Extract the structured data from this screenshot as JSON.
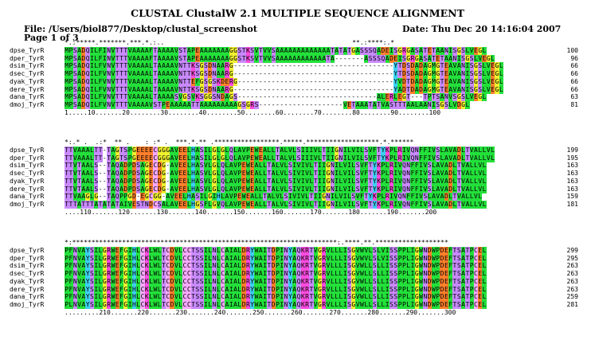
{
  "header": {
    "title": "CLUSTAL ClustalW 2.1 MULTIPLE SEQUENCE ALIGNMENT",
    "file": "File: /Users/biol877/Desktop/clustal_screenshot",
    "date": "Date: Thu Dec 20 14:16:04 2007",
    "page": "Page 1 of 3"
  },
  "blocks": [
    {
      "conservation": "*.:*****.*******.***.*.:..                                                 **.:****:.*",
      "names": [
        "dpse_TyrR",
        "dper_TyrR",
        "dsim_TyrR",
        "dsec_TyrR",
        "dyak_TyrR",
        "dere_TyrR",
        "dana_TyrR",
        "dmoj_TyrR"
      ],
      "sequences": [
        "MPSADQILFINVTTTVAAAAFTAAAAVSTAPEAAAAAAAGGSTKSVTVVSAAAAAAAAAAAAATATATGASSSQADEISGRGASATETAANISGSLVEGL",
        "MPSADQILFINVTTTVAAAAFTAAAAVSTAPEAAAAAAAGGSTKSVTVVSAAAAAAAAAAAATA-------ASSSQADEISGRGASATETAANISGSLVEGL",
        "MPSADQILFVNVTTTVAAAALTAAAAVNTTKSGSDNAARG--------------------------------------YTDSDADAGMGTEAVANISGSLVEGL",
        "MPSADQILFVNVTTTVAAAALTAAAAVNTTKSGSDNAARG--------------------------------------YTDSDADAGMGTEAVANISGSLVEGL",
        "MPSADQILFVNVTTTVAAAALTAAAAVNTTEFGSGSKDERG-------------------------------------YVDTDADAGMGTEAVANISGSLVEGL",
        "MPSADQILFVNVTTTVAAAALTAAAAVNTTKSGSDNAARG--------------------------------------YADTDADAGMGTEAVANISGSLVEGL",
        "MPSADQILFVNVTTTVAAAALTAAAASVGSVKSGGSNDAGS---------------------------------ALERLEGT---TPTSANVSGSLVEGL",
        "MPSADQILFVNVTTTVAAAAVSTPEAAAAATTAAAAAAAAAGSGRS--------------------VETAAATATVASTTTAALAANISGSLVDGL"
      ],
      "counts": [
        "100",
        "96",
        "66",
        "66",
        "66",
        "66",
        "63",
        "81"
      ],
      "ruler": "1.....10.......20........30........40........50........60........70........80........90........100"
    },
    {
      "conservation": "*:.* .  .:*  ** .    : :* .  ***.*.** .*****************.*****.*******************.*.******",
      "names": [
        "dpse_TyrR",
        "dper_TyrR",
        "dsim_TyrR",
        "dsec_TyrR",
        "dyak_TyrR",
        "dere_TyrR",
        "dana_TyrR",
        "dmoj_TyrR"
      ],
      "sequences": [
        "TTVAAALTT-TAGTSPGEEEECGGGAVEELHASILGLGLQLAVPEWEALLTALVLSIIIVLTIIGNILVILSVFTYKPLRIVQNFFIVSLAVADLTVALLVL",
        "TTVAAALTT-TAGTSPGEEEECGGGAVEELHASILGLGLQLAVPEWEALLTALVLSIIIVLTIIGNILVILSVFTYKPLRIVQNFFIVSLAVADLTVALLVL",
        "TTVTAALS--TAQADPDSAGECDG-AVEELHASVLGLQLAVPEWEALLTALVLSIVIVLTIIGNILVILSVFTYKPLRIVQNFFIVSLAVADLTVALLVL",
        "TTVTAALS--TAQADPDSAGECDG-AVEELHASVLGLQLAVPEWEALLTALVLSIVIVLTIIGNILVILSVFTYKPLRIVQNFFIVSLAVADLTVALLVL",
        "TTVTAALS--TAQADPDSAGECDG-AVEELHASVLGLQLAVPEWEALLTALVLSIVIVLTIIGNILVILSVFTYKPLRIVQNFFIVSLAVADLTVALLVL",
        "TTVTAALS--TAQADPDSAGECDG-AVEELHASVLGLQLAVPEWEALLTALVLSIVIVLTIIGNILVILSVFTYKPLRIVQNFFIVSLAVADLTVALLVL",
        "TTVAAGLG--TAQPPGD-EGCGG-AVEELHASILGIHLAVPEWEALLTALVLSIVIVLTIIGNILVILSVFTYKPLRIVQNFFIVSLAVADLTVALLVL",
        "TTTATTTATATATAIVESTNDCSALAVEELHGSFLGVQLAVPEWEALLTALVLSIVIVLTIIGNILVILSVFTYKPLRIVQNFFIVSLAVADLTVALLVL"
      ],
      "counts": [
        "199",
        "195",
        "163",
        "163",
        "163",
        "163",
        "159",
        "181"
      ],
      "ruler": "....110.......120.......130.......140.......150.......160.......170.......180.......190.......200"
    },
    {
      "conservation": "*:*********************************************************************:.****.**.*******************",
      "names": [
        "dpse_TyrR",
        "dper_TyrR",
        "dsim_TyrR",
        "dsec_TyrR",
        "dyak_TyrR",
        "dere_TyrR",
        "dana_TyrR",
        "dmoj_TyrR"
      ],
      "sequences": [
        "PFNVAYSILGRWEFGIHLCKLWLTCDVLCCTSSILNLCAIALDRYWAITDPINYAQKRTVGRVLLLISGVWVLSLVISSPPLIGWNDWPDEFTSATPCEL",
        "PFNVAYSILGRWEFGIHLCKLWLTCDVLCCTSSILNLCAIALDRYWAITDPINYAQKRTVGRVLLLISGVWVLSLVISSPPLIGWNDWPDEFTSATPCEL",
        "PFNVAYSILGRWEFGIHLCKLWLTCDVLCCTSSILNLCAIALDRYWAITDPINYAQKRTVGRVLLLISGVWLLSLLISSPPLIGWNDWPDEFTSATPCEL",
        "PFNVAYSILGRWEFGIHLCKLWLTCDVLCCTSSILNLCAIALDRYWAITDPINYAQKRTVGRVLLLISGVWLLSLLISSPPLIGWNDWPDEFTSATPCEL",
        "PFNVAYSILGRWEFGIHLCKLWLTCDVLCCTSSILNLCAIALDRYWAITDPINYAQKRTVGRVLLLISGVWLLSLLISSPPLIGWNDWPDEFTSATPCEL",
        "PFNVAYSILGRWEFGIHLCKLWLTCDVLCCTSSILNLCAIALDRYWAITDPINYAQKRTVGRVLLLISGVWLLSLLISSPPLIGWNDWPDEFTSATPCEL",
        "PFNVAYSILGRWEFGIHLCKLWLTCDVLCCTSSILNLCAIALDRYWAITDPINYAQKRTVGRVLLLISGVWLLSLLISSPPLIGWNDWPDEFTSATPCEL",
        "PLNVAYSILGRWEFGIHLCKLWLTCDVLCCTSSILNLCAIALDRYWAITDPINYAQKRTVGRVLLLISGVWLLSLLISSPPLIGWNDWPDEFTSATPCEL"
      ],
      "counts": [
        "299",
        "295",
        "263",
        "263",
        "263",
        "263",
        "259",
        "281"
      ],
      "ruler": ".........210.......220.......230.......240.......250.......260.......270.......280.......290.......300"
    }
  ],
  "colors": {
    "hydrophobic": "#23e03a",
    "acidic": "#ff7f2a",
    "basic": "#ff4be0",
    "polar": "#c98aff",
    "small": "#f0f030",
    "aromatic": "#3cd0f0"
  }
}
